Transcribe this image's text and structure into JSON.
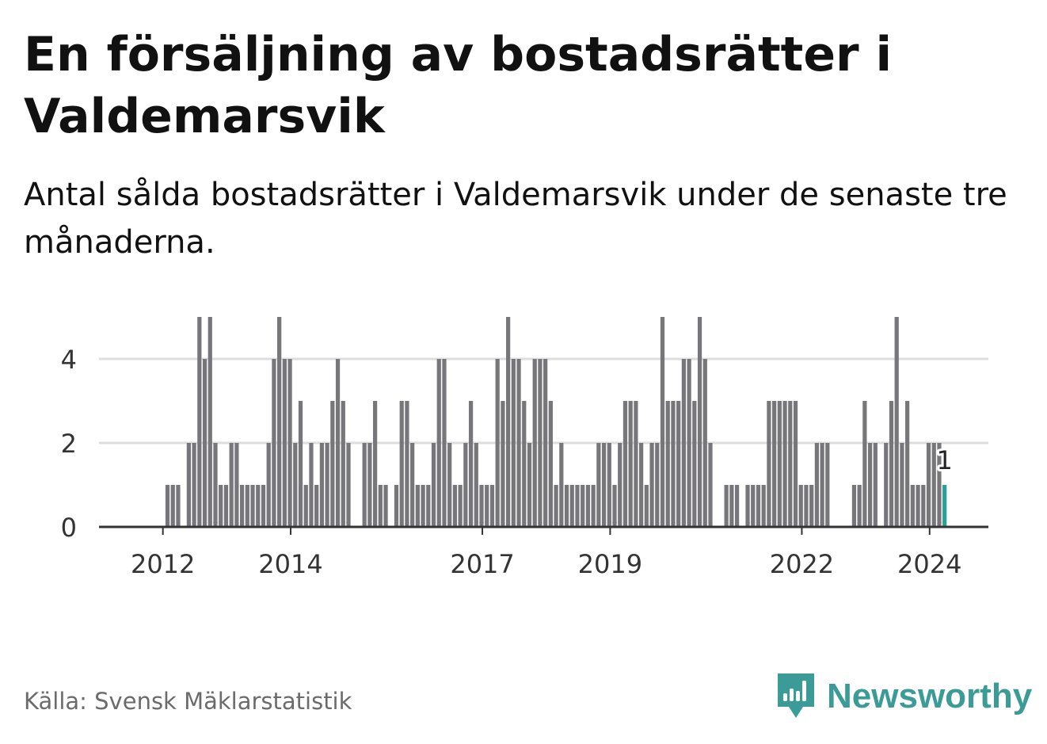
{
  "title": "En försäljning av bostadsrätter i Valdemarsvik",
  "subtitle": "Antal sålda bostadsrätter i Valdemarsvik under de senaste tre månaderna.",
  "source": "Källa: Svensk Mäklarstatistik",
  "brand": "Newsworthy",
  "colors": {
    "bar": "#77767b",
    "highlight": "#2aa198",
    "grid": "#dddddd",
    "axis": "#333333",
    "brand": "#3b9b96"
  },
  "chart_data": {
    "type": "bar",
    "title": "En försäljning av bostadsrätter i Valdemarsvik",
    "xlabel": "",
    "ylabel": "",
    "x_range": [
      2011.0,
      2024.92
    ],
    "ylim": [
      0,
      5
    ],
    "yticks": [
      "0",
      "2",
      "4"
    ],
    "ytick_values": [
      0,
      2,
      4
    ],
    "xticks": [
      "2012",
      "2014",
      "2017",
      "2019",
      "2022",
      "2024"
    ],
    "xtick_values": [
      2012,
      2014,
      2017,
      2019,
      2022,
      2024
    ],
    "first_bar_x": 2012.04,
    "bar_step": 0.0833,
    "values": [
      1,
      1,
      1,
      0,
      2,
      2,
      5,
      4,
      5,
      2,
      1,
      1,
      2,
      2,
      1,
      1,
      1,
      1,
      1,
      2,
      4,
      5,
      4,
      4,
      2,
      3,
      1,
      2,
      1,
      2,
      2,
      3,
      4,
      3,
      2,
      0,
      0,
      2,
      2,
      3,
      1,
      1,
      0,
      1,
      3,
      3,
      2,
      1,
      1,
      1,
      2,
      4,
      4,
      2,
      1,
      1,
      2,
      3,
      2,
      1,
      1,
      1,
      4,
      3,
      5,
      4,
      4,
      3,
      2,
      4,
      4,
      4,
      3,
      1,
      2,
      1,
      1,
      1,
      1,
      1,
      1,
      2,
      2,
      2,
      1,
      2,
      3,
      3,
      3,
      2,
      1,
      2,
      2,
      5,
      3,
      3,
      3,
      4,
      4,
      3,
      5,
      4,
      2,
      0,
      0,
      1,
      1,
      1,
      0,
      1,
      1,
      1,
      1,
      3,
      3,
      3,
      3,
      3,
      3,
      1,
      1,
      1,
      2,
      2,
      2,
      0,
      0,
      0,
      0,
      1,
      1,
      3,
      2,
      2,
      0,
      2,
      3,
      5,
      2,
      3,
      1,
      1,
      1,
      2,
      2,
      2,
      1
    ],
    "highlight_label": "1"
  }
}
